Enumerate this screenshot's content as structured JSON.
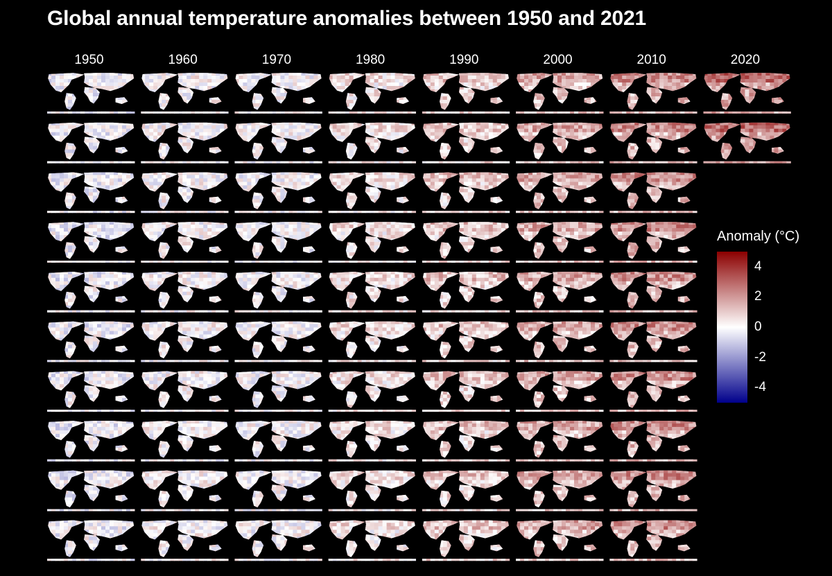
{
  "chart_data": {
    "type": "heatmap",
    "title": "Global annual temperature anomalies between 1950 and 2021",
    "facet_columns": [
      "1950",
      "1960",
      "1970",
      "1980",
      "1990",
      "2000",
      "2010",
      "2020"
    ],
    "years_per_column": 10,
    "first_year": 1950,
    "last_year": 2021,
    "decade_mean_anomaly": [
      -0.15,
      0.05,
      0.0,
      0.35,
      0.65,
      0.95,
      1.25,
      1.6
    ],
    "colorscale": {
      "low": "#00008b",
      "mid": "#ffffff",
      "high": "#8b0000",
      "limits": [
        -5,
        5
      ]
    },
    "legend": {
      "title": "Anomaly (°C)",
      "ticks": [
        {
          "value": 4,
          "label": "4"
        },
        {
          "value": 2,
          "label": "2"
        },
        {
          "value": 0,
          "label": "0"
        },
        {
          "value": -2,
          "label": "-2"
        },
        {
          "value": -4,
          "label": "-4"
        }
      ],
      "placement": "right"
    },
    "background": "#000000"
  }
}
